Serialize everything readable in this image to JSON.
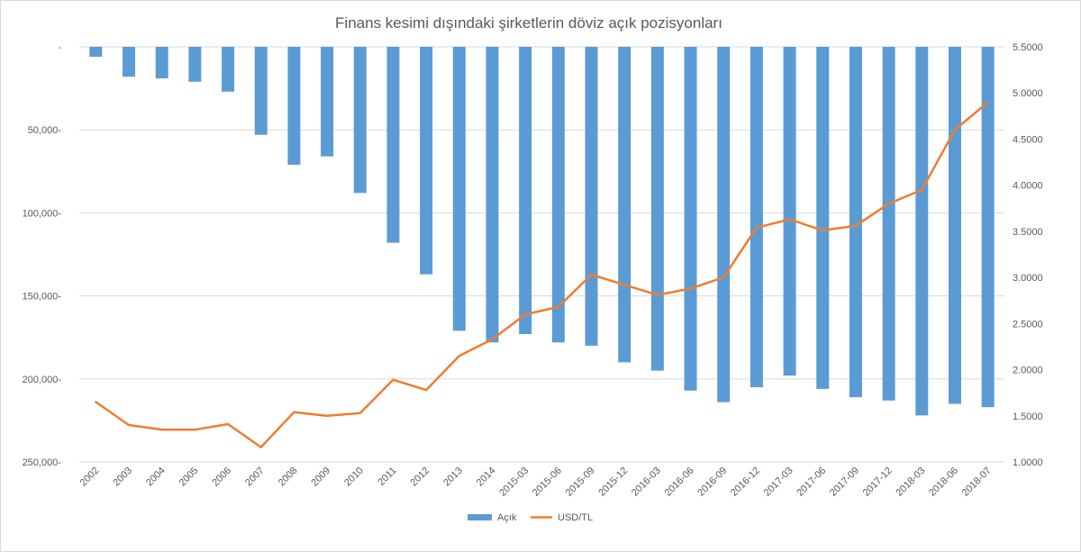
{
  "chart_data": {
    "type": "bar+line",
    "title": "Finans kesimi dışındaki şirketlerin döviz açık pozisyonları",
    "categories": [
      "2002",
      "2003",
      "2004",
      "2005",
      "2006",
      "2007",
      "2008",
      "2009",
      "2010",
      "2011",
      "2012",
      "2013",
      "2014",
      "2015-03",
      "2015-06",
      "2015-09",
      "2015-12",
      "2016-03",
      "2016-06",
      "2016-09",
      "2016-12",
      "2017-03",
      "2017-06",
      "2017-09",
      "2017-12",
      "2018-03",
      "2018-06",
      "2018-07"
    ],
    "series": [
      {
        "name": "Açık",
        "type": "bar",
        "axis": "left",
        "color": "#5b9bd5",
        "values": [
          6000,
          18000,
          19000,
          21000,
          27000,
          53000,
          71000,
          66000,
          88000,
          118000,
          137000,
          171000,
          178000,
          173000,
          178000,
          180000,
          190000,
          195000,
          207000,
          214000,
          205000,
          198000,
          206000,
          211000,
          213000,
          222000,
          215000,
          217000
        ]
      },
      {
        "name": "USD/TL",
        "type": "line",
        "axis": "right",
        "color": "#ed7d31",
        "values": [
          1.65,
          1.4,
          1.35,
          1.35,
          1.41,
          1.16,
          1.54,
          1.5,
          1.53,
          1.89,
          1.78,
          2.15,
          2.33,
          2.6,
          2.68,
          3.03,
          2.92,
          2.81,
          2.88,
          3.0,
          3.54,
          3.63,
          3.51,
          3.56,
          3.8,
          3.95,
          4.6,
          4.9
        ]
      }
    ],
    "left_axis": {
      "reversed": true,
      "range": [
        0,
        250000
      ],
      "ticks": [
        0,
        50000,
        100000,
        150000,
        200000,
        250000
      ],
      "tick_labels": [
        "-",
        "50,000-",
        "100,000-",
        "150,000-",
        "200,000-",
        "250,000-"
      ]
    },
    "right_axis": {
      "range": [
        1.0,
        5.5
      ],
      "ticks": [
        1.0,
        1.5,
        2.0,
        2.5,
        3.0,
        3.5,
        4.0,
        4.5,
        5.0,
        5.5
      ],
      "tick_labels": [
        "1.0000",
        "1.5000",
        "2.0000",
        "2.5000",
        "3.0000",
        "3.5000",
        "4.0000",
        "4.5000",
        "5.0000",
        "5.5000"
      ]
    },
    "legend": {
      "position": "bottom",
      "items": [
        "Açık",
        "USD/TL"
      ]
    },
    "grid": true
  }
}
